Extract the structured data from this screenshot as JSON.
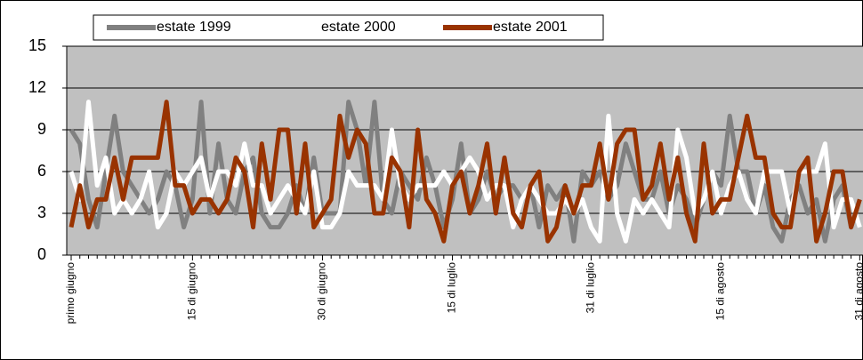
{
  "chart_data": {
    "type": "line",
    "categories": [
      "primo giugno",
      null,
      null,
      null,
      null,
      null,
      null,
      null,
      null,
      null,
      null,
      null,
      null,
      null,
      "15 di giugno",
      null,
      null,
      null,
      null,
      null,
      null,
      null,
      null,
      null,
      null,
      null,
      null,
      null,
      null,
      "30 di giugno",
      null,
      null,
      null,
      null,
      null,
      null,
      null,
      null,
      null,
      null,
      null,
      null,
      null,
      null,
      "15 di luglio",
      null,
      null,
      null,
      null,
      null,
      null,
      null,
      null,
      null,
      null,
      null,
      null,
      null,
      null,
      null,
      "31 di luglio",
      null,
      null,
      null,
      null,
      null,
      null,
      null,
      null,
      null,
      null,
      null,
      null,
      null,
      null,
      "15 di agosto",
      null,
      null,
      null,
      null,
      null,
      null,
      null,
      null,
      null,
      null,
      null,
      null,
      null,
      null,
      null,
      "31 di agosto"
    ],
    "series": [
      {
        "name": "estate 1999",
        "color": "#808080",
        "values": [
          9,
          8,
          4,
          2,
          6,
          10,
          6,
          5,
          4,
          3,
          4,
          6,
          5,
          2,
          4,
          11,
          3,
          8,
          4,
          3,
          6,
          7,
          3,
          2,
          2,
          3,
          5,
          3,
          7,
          3,
          3,
          3,
          11,
          9,
          5,
          11,
          4,
          3,
          6,
          5,
          4,
          7,
          5,
          2,
          4,
          8,
          3,
          4,
          6,
          4,
          5,
          5,
          4,
          5,
          2,
          5,
          4,
          5,
          1,
          6,
          5,
          6,
          4,
          5,
          8,
          6,
          4,
          4,
          6,
          3,
          5,
          4,
          2,
          4,
          6,
          5,
          10,
          6,
          6,
          3,
          5,
          2,
          1,
          4,
          5,
          3,
          4,
          1,
          4,
          5,
          2,
          4
        ]
      },
      {
        "name": "estate 2000",
        "color": "#ffffff",
        "values": [
          6,
          4,
          11,
          5,
          7,
          3,
          4,
          3,
          4,
          6,
          2,
          3,
          6,
          5,
          6,
          7,
          4,
          6,
          6,
          5,
          8,
          5,
          5,
          3,
          4,
          5,
          4,
          3,
          6,
          2,
          2,
          3,
          6,
          5,
          5,
          5,
          4,
          9,
          5,
          4,
          5,
          5,
          5,
          6,
          5,
          6,
          7,
          6,
          4,
          5,
          5,
          2,
          4,
          5,
          4,
          3,
          3,
          4,
          3,
          4,
          2,
          1,
          10,
          3,
          1,
          4,
          3,
          4,
          3,
          2,
          9,
          7,
          3,
          4,
          6,
          3,
          5,
          6,
          4,
          3,
          6,
          6,
          6,
          3,
          6,
          6,
          6,
          8,
          2,
          4,
          4,
          2
        ]
      },
      {
        "name": "estate 2001",
        "color": "#993300",
        "values": [
          2,
          5,
          2,
          4,
          4,
          7,
          4,
          7,
          7,
          7,
          7,
          11,
          5,
          5,
          3,
          4,
          4,
          3,
          4,
          7,
          6,
          2,
          8,
          4,
          9,
          9,
          3,
          8,
          2,
          3,
          4,
          10,
          7,
          9,
          8,
          3,
          3,
          7,
          6,
          2,
          9,
          4,
          3,
          1,
          5,
          6,
          3,
          5,
          8,
          3,
          7,
          3,
          2,
          5,
          6,
          1,
          2,
          5,
          3,
          5,
          5,
          8,
          4,
          8,
          9,
          9,
          4,
          5,
          8,
          4,
          7,
          3,
          1,
          8,
          3,
          4,
          4,
          7,
          10,
          7,
          7,
          3,
          2,
          2,
          6,
          7,
          1,
          3,
          6,
          6,
          2,
          4
        ]
      }
    ],
    "ylim": [
      0,
      15
    ],
    "yticks": [
      0,
      3,
      6,
      9,
      12,
      15
    ],
    "grid": true,
    "legend": "top"
  }
}
